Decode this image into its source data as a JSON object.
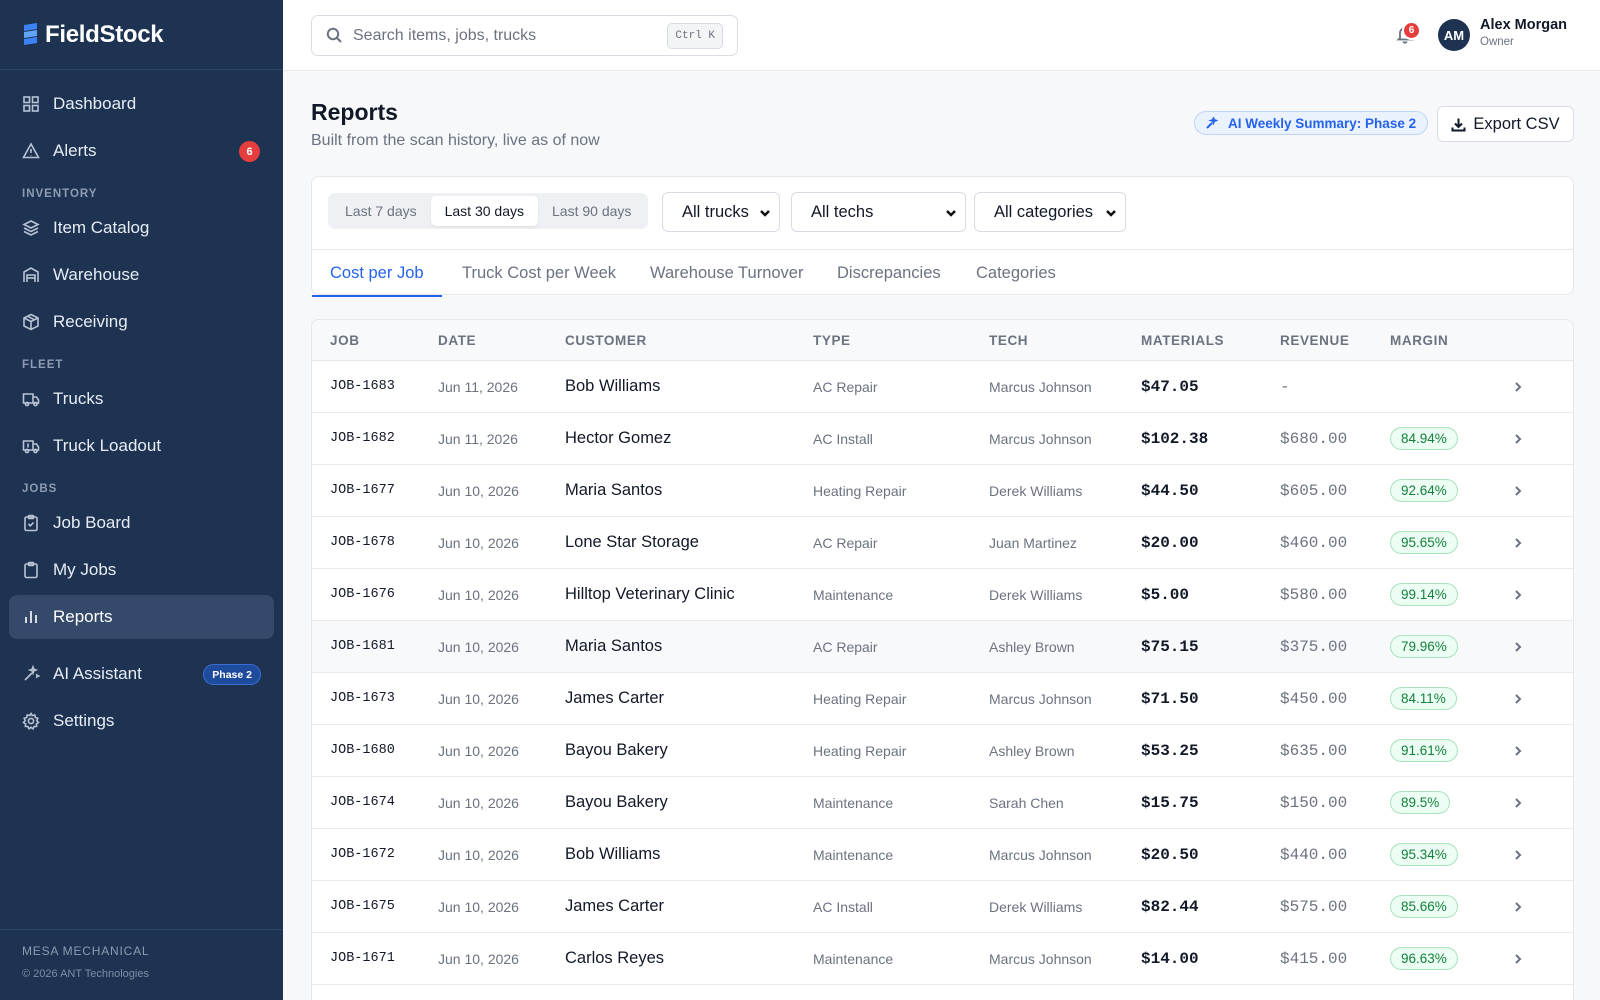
{
  "brand": {
    "name": "FieldStock"
  },
  "sidebar": {
    "dashboard": "Dashboard",
    "alerts": "Alerts",
    "alerts_badge": "6",
    "section_inventory": "INVENTORY",
    "item_catalog": "Item Catalog",
    "warehouse": "Warehouse",
    "receiving": "Receiving",
    "section_fleet": "FLEET",
    "trucks": "Trucks",
    "truck_loadout": "Truck Loadout",
    "section_jobs": "JOBS",
    "job_board": "Job Board",
    "my_jobs": "My Jobs",
    "reports": "Reports",
    "ai_assistant": "AI Assistant",
    "ai_badge": "Phase 2",
    "settings": "Settings",
    "org": "MESA MECHANICAL",
    "copyright": "© 2026 ANT Technologies"
  },
  "topbar": {
    "search_placeholder": "Search items, jobs, trucks",
    "shortcut": "Ctrl K",
    "notification_count": "6",
    "avatar_initials": "AM",
    "user_name": "Alex Morgan",
    "user_role": "Owner"
  },
  "page": {
    "title": "Reports",
    "subtitle": "Built from the scan history, live as of now",
    "ai_pill": "AI Weekly Summary: Phase 2",
    "export_label": "Export CSV"
  },
  "filters": {
    "ranges": [
      "Last 7 days",
      "Last 30 days",
      "Last 90 days"
    ],
    "active_range": "Last 30 days",
    "trucks": "All trucks",
    "techs": "All techs",
    "categories": "All categories"
  },
  "tabs": [
    "Cost per Job",
    "Truck Cost per Week",
    "Warehouse Turnover",
    "Discrepancies",
    "Categories"
  ],
  "active_tab": "Cost per Job",
  "table": {
    "columns": [
      "JOB",
      "DATE",
      "CUSTOMER",
      "TYPE",
      "TECH",
      "MATERIALS",
      "REVENUE",
      "MARGIN"
    ],
    "rows": [
      {
        "job": "JOB-1683",
        "date": "Jun 11, 2026",
        "customer": "Bob Williams",
        "type": "AC Repair",
        "tech": "Marcus Johnson",
        "materials": "$47.05",
        "revenue": "-",
        "margin": ""
      },
      {
        "job": "JOB-1682",
        "date": "Jun 11, 2026",
        "customer": "Hector Gomez",
        "type": "AC Install",
        "tech": "Marcus Johnson",
        "materials": "$102.38",
        "revenue": "$680.00",
        "margin": "84.94%"
      },
      {
        "job": "JOB-1677",
        "date": "Jun 10, 2026",
        "customer": "Maria Santos",
        "type": "Heating Repair",
        "tech": "Derek Williams",
        "materials": "$44.50",
        "revenue": "$605.00",
        "margin": "92.64%"
      },
      {
        "job": "JOB-1678",
        "date": "Jun 10, 2026",
        "customer": "Lone Star Storage",
        "type": "AC Repair",
        "tech": "Juan Martinez",
        "materials": "$20.00",
        "revenue": "$460.00",
        "margin": "95.65%"
      },
      {
        "job": "JOB-1676",
        "date": "Jun 10, 2026",
        "customer": "Hilltop Veterinary Clinic",
        "type": "Maintenance",
        "tech": "Derek Williams",
        "materials": "$5.00",
        "revenue": "$580.00",
        "margin": "99.14%"
      },
      {
        "job": "JOB-1681",
        "date": "Jun 10, 2026",
        "customer": "Maria Santos",
        "type": "AC Repair",
        "tech": "Ashley Brown",
        "materials": "$75.15",
        "revenue": "$375.00",
        "margin": "79.96%"
      },
      {
        "job": "JOB-1673",
        "date": "Jun 10, 2026",
        "customer": "James Carter",
        "type": "Heating Repair",
        "tech": "Marcus Johnson",
        "materials": "$71.50",
        "revenue": "$450.00",
        "margin": "84.11%"
      },
      {
        "job": "JOB-1680",
        "date": "Jun 10, 2026",
        "customer": "Bayou Bakery",
        "type": "Heating Repair",
        "tech": "Ashley Brown",
        "materials": "$53.25",
        "revenue": "$635.00",
        "margin": "91.61%"
      },
      {
        "job": "JOB-1674",
        "date": "Jun 10, 2026",
        "customer": "Bayou Bakery",
        "type": "Maintenance",
        "tech": "Sarah Chen",
        "materials": "$15.75",
        "revenue": "$150.00",
        "margin": "89.5%"
      },
      {
        "job": "JOB-1672",
        "date": "Jun 10, 2026",
        "customer": "Bob Williams",
        "type": "Maintenance",
        "tech": "Marcus Johnson",
        "materials": "$20.50",
        "revenue": "$440.00",
        "margin": "95.34%"
      },
      {
        "job": "JOB-1675",
        "date": "Jun 10, 2026",
        "customer": "James Carter",
        "type": "AC Install",
        "tech": "Derek Williams",
        "materials": "$82.44",
        "revenue": "$575.00",
        "margin": "85.66%"
      },
      {
        "job": "JOB-1671",
        "date": "Jun 10, 2026",
        "customer": "Carlos Reyes",
        "type": "Maintenance",
        "tech": "Marcus Johnson",
        "materials": "$14.00",
        "revenue": "$415.00",
        "margin": "96.63%"
      }
    ]
  }
}
